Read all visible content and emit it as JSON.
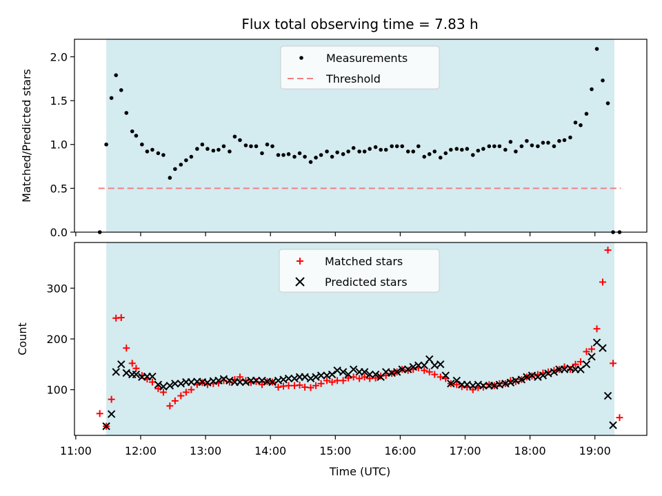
{
  "title": "Flux total observing time = 7.83 h",
  "xlabel": "Time (UTC)",
  "x_ticks": [
    "11:00",
    "12:00",
    "13:00",
    "14:00",
    "15:00",
    "16:00",
    "17:00",
    "18:00",
    "19:00"
  ],
  "colors": {
    "shade": "#d4ebf0",
    "measurements": "#000000",
    "threshold": "#f08080",
    "matched": "#ff0000",
    "predicted": "#000000"
  },
  "chart_data": [
    {
      "type": "scatter",
      "ylabel": "Matched/Predicted stars",
      "xlim": [
        10.98,
        19.8
      ],
      "ylim": [
        0,
        2.2
      ],
      "y_ticks": [
        "0.0",
        "0.5",
        "1.0",
        "1.5",
        "2.0"
      ],
      "y_tick_values": [
        0,
        0.5,
        1.0,
        1.5,
        2.0
      ],
      "shaded_span": [
        11.47,
        19.3
      ],
      "threshold": 0.5,
      "threshold_x": [
        11.35,
        19.4
      ],
      "legend": {
        "placement": "top-center",
        "entries": [
          "Measurements",
          "Threshold"
        ]
      },
      "series": [
        {
          "name": "Measurements",
          "marker": "dot",
          "x": [
            11.37,
            11.47,
            11.55,
            11.62,
            11.7,
            11.78,
            11.87,
            11.93,
            12.02,
            12.1,
            12.18,
            12.27,
            12.35,
            12.45,
            12.53,
            12.62,
            12.7,
            12.78,
            12.87,
            12.95,
            13.03,
            13.12,
            13.2,
            13.28,
            13.37,
            13.45,
            13.53,
            13.62,
            13.7,
            13.78,
            13.87,
            13.95,
            14.03,
            14.12,
            14.2,
            14.28,
            14.37,
            14.45,
            14.53,
            14.62,
            14.7,
            14.78,
            14.87,
            14.95,
            15.03,
            15.12,
            15.2,
            15.28,
            15.37,
            15.45,
            15.53,
            15.62,
            15.7,
            15.78,
            15.87,
            15.95,
            16.03,
            16.12,
            16.2,
            16.28,
            16.37,
            16.45,
            16.53,
            16.62,
            16.7,
            16.78,
            16.87,
            16.95,
            17.03,
            17.12,
            17.2,
            17.28,
            17.37,
            17.45,
            17.53,
            17.62,
            17.7,
            17.78,
            17.87,
            17.95,
            18.03,
            18.12,
            18.2,
            18.28,
            18.37,
            18.45,
            18.53,
            18.62,
            18.7,
            18.78,
            18.87,
            18.95,
            19.03,
            19.12,
            19.2,
            19.28,
            19.38
          ],
          "y": [
            0.0,
            1.0,
            1.53,
            1.79,
            1.62,
            1.36,
            1.15,
            1.1,
            1.0,
            0.92,
            0.94,
            0.9,
            0.88,
            0.62,
            0.72,
            0.77,
            0.82,
            0.86,
            0.95,
            1.0,
            0.95,
            0.93,
            0.94,
            0.98,
            0.92,
            1.09,
            1.05,
            0.99,
            0.98,
            0.98,
            0.9,
            1.0,
            0.98,
            0.88,
            0.88,
            0.89,
            0.86,
            0.9,
            0.86,
            0.8,
            0.85,
            0.88,
            0.92,
            0.86,
            0.91,
            0.89,
            0.92,
            0.96,
            0.92,
            0.92,
            0.95,
            0.97,
            0.94,
            0.94,
            0.98,
            0.98,
            0.98,
            0.92,
            0.92,
            0.98,
            0.86,
            0.89,
            0.92,
            0.85,
            0.9,
            0.94,
            0.95,
            0.94,
            0.95,
            0.88,
            0.93,
            0.95,
            0.98,
            0.98,
            0.98,
            0.94,
            1.03,
            0.92,
            0.98,
            1.04,
            0.99,
            0.98,
            1.02,
            1.02,
            0.98,
            1.04,
            1.05,
            1.08,
            1.25,
            1.22,
            1.35,
            1.63,
            2.09,
            1.73,
            1.47,
            0.0,
            0.0
          ]
        }
      ]
    },
    {
      "type": "scatter",
      "ylabel": "Count",
      "xlabel": "Time (UTC)",
      "xlim": [
        10.98,
        19.8
      ],
      "ylim": [
        10,
        390
      ],
      "y_ticks": [
        "100",
        "200",
        "300"
      ],
      "y_tick_values": [
        100,
        200,
        300
      ],
      "shaded_span": [
        11.47,
        19.3
      ],
      "legend": {
        "placement": "top-center",
        "entries": [
          "Matched stars",
          "Predicted stars"
        ]
      },
      "series": [
        {
          "name": "Matched stars",
          "marker": "plus",
          "x": [
            11.37,
            11.47,
            11.55,
            11.62,
            11.7,
            11.78,
            11.87,
            11.93,
            12.02,
            12.1,
            12.18,
            12.27,
            12.35,
            12.45,
            12.53,
            12.62,
            12.7,
            12.78,
            12.87,
            12.95,
            13.03,
            13.12,
            13.2,
            13.28,
            13.37,
            13.45,
            13.53,
            13.62,
            13.7,
            13.78,
            13.87,
            13.95,
            14.03,
            14.12,
            14.2,
            14.28,
            14.37,
            14.45,
            14.53,
            14.62,
            14.7,
            14.78,
            14.87,
            14.95,
            15.03,
            15.12,
            15.2,
            15.28,
            15.37,
            15.45,
            15.53,
            15.62,
            15.7,
            15.78,
            15.87,
            15.95,
            16.03,
            16.12,
            16.2,
            16.28,
            16.37,
            16.45,
            16.53,
            16.62,
            16.7,
            16.78,
            16.87,
            16.95,
            17.03,
            17.12,
            17.2,
            17.28,
            17.37,
            17.45,
            17.53,
            17.62,
            17.7,
            17.78,
            17.87,
            17.95,
            18.03,
            18.12,
            18.2,
            18.28,
            18.37,
            18.45,
            18.53,
            18.62,
            18.7,
            18.78,
            18.87,
            18.95,
            19.03,
            19.12,
            19.2,
            19.28,
            19.38
          ],
          "y": [
            53,
            28,
            81,
            241,
            242,
            182,
            152,
            142,
            128,
            121,
            115,
            102,
            95,
            68,
            78,
            88,
            95,
            100,
            110,
            114,
            110,
            112,
            113,
            118,
            115,
            120,
            125,
            118,
            114,
            116,
            110,
            116,
            115,
            105,
            107,
            108,
            108,
            109,
            105,
            104,
            108,
            112,
            118,
            115,
            118,
            118,
            123,
            125,
            122,
            125,
            122,
            123,
            127,
            128,
            132,
            135,
            140,
            138,
            140,
            143,
            138,
            135,
            130,
            125,
            122,
            112,
            110,
            106,
            105,
            100,
            104,
            105,
            110,
            108,
            112,
            112,
            118,
            116,
            120,
            125,
            127,
            130,
            133,
            135,
            138,
            140,
            145,
            140,
            150,
            155,
            175,
            180,
            220,
            312,
            375,
            152,
            45
          ]
        },
        {
          "name": "Predicted stars",
          "marker": "x",
          "x": [
            11.47,
            11.55,
            11.62,
            11.7,
            11.78,
            11.87,
            11.93,
            12.02,
            12.1,
            12.18,
            12.27,
            12.35,
            12.45,
            12.53,
            12.62,
            12.7,
            12.78,
            12.87,
            12.95,
            13.03,
            13.12,
            13.2,
            13.28,
            13.37,
            13.45,
            13.53,
            13.62,
            13.7,
            13.78,
            13.87,
            13.95,
            14.03,
            14.12,
            14.2,
            14.28,
            14.37,
            14.45,
            14.53,
            14.62,
            14.7,
            14.78,
            14.87,
            14.95,
            15.03,
            15.12,
            15.2,
            15.28,
            15.37,
            15.45,
            15.53,
            15.62,
            15.7,
            15.78,
            15.87,
            15.95,
            16.03,
            16.12,
            16.2,
            16.28,
            16.37,
            16.45,
            16.53,
            16.62,
            16.7,
            16.78,
            16.87,
            16.95,
            17.03,
            17.12,
            17.2,
            17.28,
            17.37,
            17.45,
            17.53,
            17.62,
            17.7,
            17.78,
            17.87,
            17.95,
            18.03,
            18.12,
            18.2,
            18.28,
            18.37,
            18.45,
            18.53,
            18.62,
            18.7,
            18.78,
            18.87,
            18.95,
            19.03,
            19.12,
            19.2,
            19.28
          ],
          "y": [
            28,
            52,
            135,
            150,
            133,
            130,
            130,
            125,
            126,
            126,
            110,
            106,
            108,
            112,
            112,
            115,
            115,
            116,
            115,
            114,
            117,
            118,
            121,
            118,
            115,
            115,
            115,
            118,
            118,
            118,
            116,
            115,
            118,
            120,
            122,
            122,
            125,
            125,
            122,
            125,
            128,
            128,
            130,
            138,
            135,
            130,
            140,
            135,
            135,
            130,
            130,
            125,
            135,
            133,
            135,
            140,
            140,
            145,
            148,
            148,
            160,
            148,
            150,
            128,
            112,
            118,
            110,
            110,
            108,
            110,
            108,
            108,
            108,
            110,
            112,
            114,
            118,
            120,
            125,
            128,
            125,
            128,
            132,
            135,
            140,
            140,
            142,
            140,
            140,
            150,
            165,
            193,
            182,
            88,
            30
          ]
        }
      ]
    }
  ]
}
